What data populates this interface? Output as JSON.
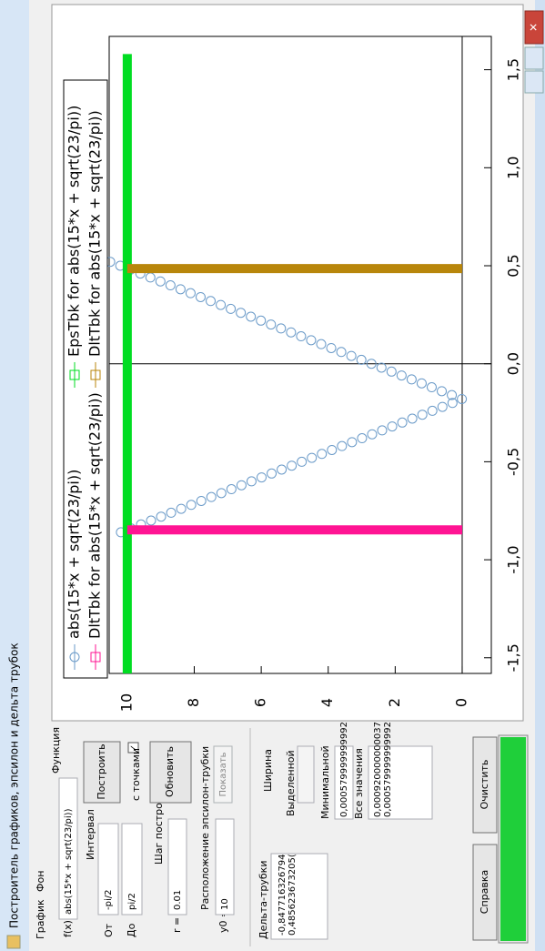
{
  "window": {
    "title": "Построитель графиков, эпсилон и дельта трубок"
  },
  "menu": [
    "График",
    "Фон"
  ],
  "form": {
    "function_group": "Функция",
    "fx_label": "f(x) =",
    "fx_value": "abs(15*x + sqrt(23/pi))",
    "interval_group": "Интервал",
    "from_label": "От",
    "from_value": "-pi/2",
    "to_label": "До",
    "to_value": "pi/2",
    "build_button": "Построить",
    "points_checkbox": "с точками",
    "step_group": "Шаг построения",
    "r_label": "r =",
    "r_value": "0.01",
    "refresh_button": "Обновить",
    "eps_group": "Расположение эпсилон-трубки",
    "y0_label": "y0 =",
    "y0_value": "10",
    "show_button": "Показать",
    "delta_group": "Дельта-трубки",
    "delta_list": [
      "-0,847716326794",
      "0,485623673205("
    ],
    "width_group": "Ширина",
    "selected_label": "Выделенной",
    "min_label": "Минимальной",
    "min_value": "0,000579999999992",
    "all_label": "Все значения",
    "all_list": [
      "0,000920000000037",
      "0,000579999999992"
    ],
    "help_button": "Справка",
    "clear_button": "Очистить"
  },
  "chart_data": {
    "type": "line",
    "xlim": [
      -1.58,
      1.67
    ],
    "ylim": [
      -0.87,
      10.54
    ],
    "xticks": [
      {
        "value": -1.5,
        "label": "-1,5"
      },
      {
        "value": -1,
        "label": "-1,0"
      },
      {
        "value": -0.5,
        "label": "-0,5"
      },
      {
        "value": 0,
        "label": "0,0"
      },
      {
        "value": 0.5,
        "label": "0,5"
      },
      {
        "value": 1,
        "label": "1,0"
      },
      {
        "value": 1.5,
        "label": "1,5"
      }
    ],
    "yticks": [
      0,
      2,
      4,
      6,
      8,
      10
    ],
    "series": [
      {
        "name": "abs(15*x + sqrt(23/pi))",
        "color": "#6a9ac8",
        "style": "markers",
        "x": [
          -0.86,
          -0.84,
          -0.82,
          -0.8,
          -0.78,
          -0.76,
          -0.74,
          -0.72,
          -0.7,
          -0.68,
          -0.66,
          -0.64,
          -0.62,
          -0.6,
          -0.58,
          -0.56,
          -0.54,
          -0.52,
          -0.5,
          -0.48,
          -0.46,
          -0.44,
          -0.42,
          -0.4,
          -0.38,
          -0.36,
          -0.34,
          -0.32,
          -0.3,
          -0.28,
          -0.26,
          -0.24,
          -0.22,
          -0.2,
          -0.18,
          -0.16,
          -0.14,
          -0.12,
          -0.1,
          -0.08,
          -0.06,
          -0.04,
          -0.02,
          0,
          0.02,
          0.04,
          0.06,
          0.08,
          0.1,
          0.12,
          0.14,
          0.16,
          0.18,
          0.2,
          0.22,
          0.24,
          0.26,
          0.28,
          0.3,
          0.32,
          0.34,
          0.36,
          0.38,
          0.4,
          0.42,
          0.44,
          0.46,
          0.48,
          0.5,
          0.52
        ],
        "values": [
          10.19,
          9.89,
          9.59,
          9.29,
          8.99,
          8.69,
          8.39,
          8.09,
          7.79,
          7.49,
          7.19,
          6.89,
          6.59,
          6.29,
          5.99,
          5.69,
          5.39,
          5.09,
          4.79,
          4.49,
          4.19,
          3.89,
          3.59,
          3.29,
          2.99,
          2.69,
          2.39,
          2.09,
          1.79,
          1.49,
          1.19,
          0.89,
          0.59,
          0.29,
          0.01,
          0.31,
          0.61,
          0.91,
          1.21,
          1.51,
          1.81,
          2.11,
          2.41,
          2.71,
          3.01,
          3.31,
          3.61,
          3.91,
          4.21,
          4.51,
          4.81,
          5.11,
          5.41,
          5.71,
          6.01,
          6.31,
          6.61,
          6.91,
          7.21,
          7.51,
          7.81,
          8.11,
          8.41,
          8.71,
          9.01,
          9.31,
          9.61,
          9.91,
          10.21,
          10.51
        ]
      },
      {
        "name": "EpsTbk for abs(15*x + sqrt(23/pi))",
        "color": "#00dd22",
        "style": "lines",
        "x": [
          -1.58,
          1.58
        ],
        "values": [
          10,
          10
        ]
      },
      {
        "name": "DltTbk for abs(15*x + sqrt(23/pi))",
        "color": "#ff1493",
        "style": "lines",
        "x": [
          -0.8477,
          -0.8477
        ],
        "values": [
          0,
          10
        ]
      },
      {
        "name": "DltTbk for abs(15*x + sqrt(23/pi))",
        "color": "#b8860b",
        "style": "lines",
        "x": [
          0.4856,
          0.4856
        ],
        "values": [
          0,
          10
        ]
      }
    ]
  }
}
